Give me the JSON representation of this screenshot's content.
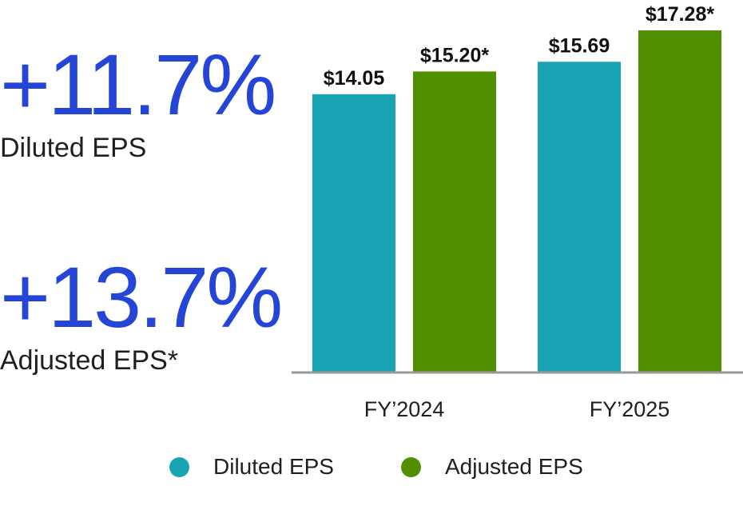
{
  "stats": [
    {
      "value": "+11.7%",
      "label": "Diluted EPS"
    },
    {
      "value": "+13.7%",
      "label": "Adjusted EPS*"
    }
  ],
  "colors": {
    "diluted": "#1aa3b3",
    "adjusted": "#4f8f00",
    "accent": "#2445d6",
    "axis": "#999999"
  },
  "chart_data": {
    "type": "bar",
    "categories": [
      "FY’2024",
      "FY’2025"
    ],
    "series": [
      {
        "name": "Diluted EPS",
        "values": [
          14.05,
          15.69
        ],
        "labels": [
          "$14.05",
          "$15.69"
        ]
      },
      {
        "name": "Adjusted EPS",
        "values": [
          15.2,
          17.28
        ],
        "labels": [
          "$15.20*",
          "$17.28*"
        ]
      }
    ],
    "ylim": [
      0,
      18
    ],
    "legend": "bottom"
  },
  "legend": [
    {
      "label": "Diluted EPS"
    },
    {
      "label": "Adjusted EPS"
    }
  ]
}
